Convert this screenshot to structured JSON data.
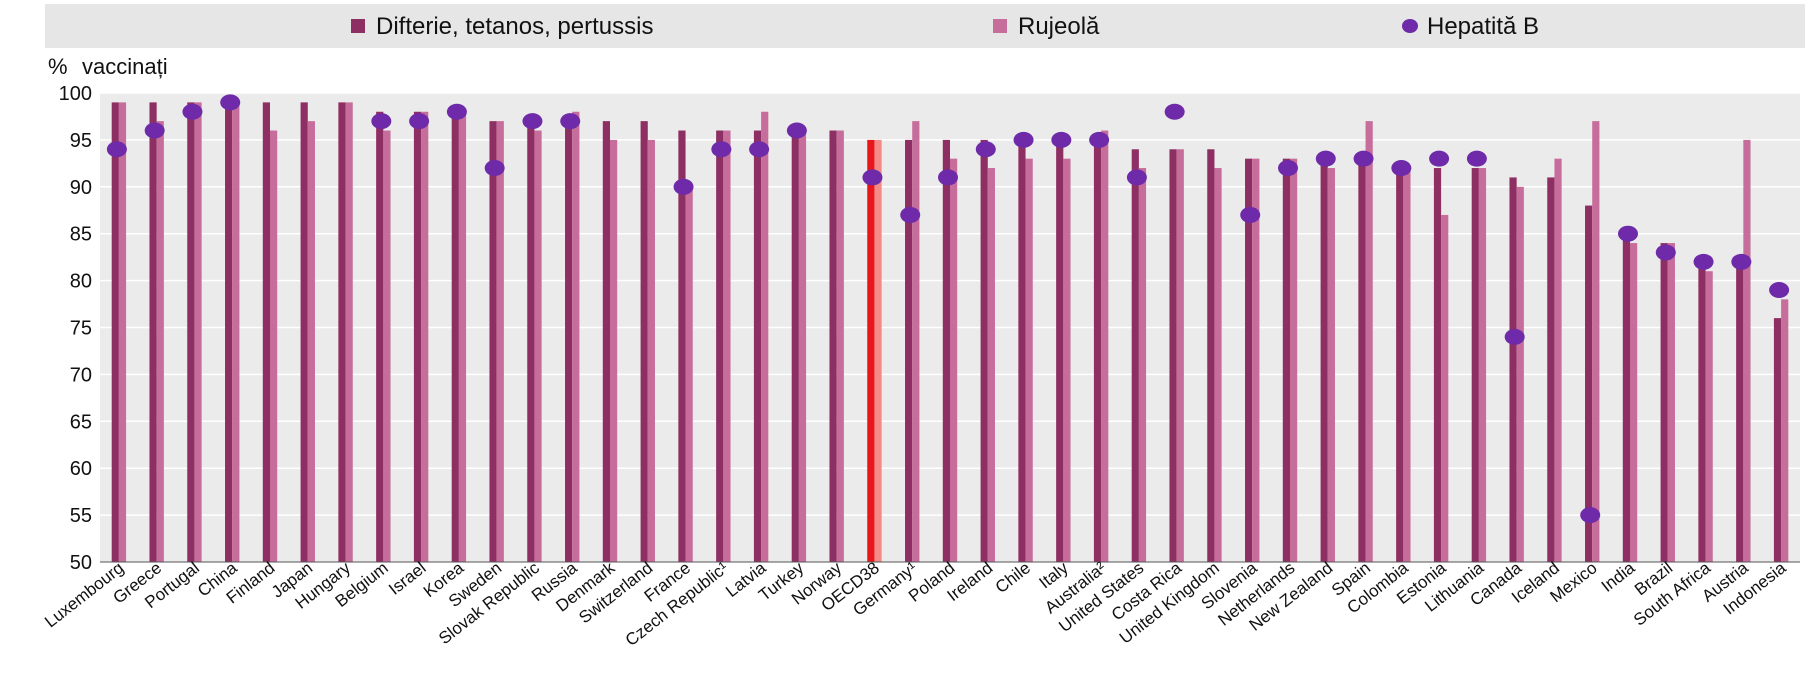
{
  "colors": {
    "series1": "#8e2f63",
    "series2": "#c76d9c",
    "series3": "#6e2aa8",
    "highlight1": "#e8161b",
    "highlight2": "#f48a86",
    "plot_bg": "#ebebeb",
    "legend_bg": "#e6e6e6",
    "grid": "#ffffff"
  },
  "chart_data": {
    "type": "bar",
    "ylabel": "vaccinați",
    "ylabel_unit": "%",
    "ylim": [
      50,
      100
    ],
    "yticks": [
      50,
      55,
      60,
      65,
      70,
      75,
      80,
      85,
      90,
      95,
      100
    ],
    "grid": true,
    "legend_position": "top",
    "highlight_category": "OECD38",
    "categories": [
      "Luxembourg",
      "Greece",
      "Portugal",
      "China",
      "Finland",
      "Japan",
      "Hungary",
      "Belgium",
      "Israel",
      "Korea",
      "Sweden",
      "Slovak Republic",
      "Russia",
      "Denmark",
      "Switzerland",
      "France",
      "Czech Republic¹",
      "Latvia",
      "Turkey",
      "Norway",
      "OECD38",
      "Germany¹",
      "Poland",
      "Ireland",
      "Chile",
      "Italy",
      "Australia²",
      "United States",
      "Costa Rica",
      "United Kingdom",
      "Slovenia",
      "Netherlands",
      "New Zealand",
      "Spain",
      "Colombia",
      "Estonia",
      "Lithuania",
      "Canada",
      "Iceland",
      "Mexico",
      "India",
      "Brazil",
      "South Africa",
      "Austria",
      "Indonesia"
    ],
    "series": [
      {
        "name": "Difterie, tetanos, pertussis",
        "kind": "bar",
        "values": [
          99,
          99,
          99,
          99,
          99,
          99,
          99,
          98,
          98,
          98,
          97,
          97,
          97,
          97,
          97,
          96,
          96,
          96,
          96,
          96,
          95,
          95,
          95,
          95,
          95,
          95,
          95,
          94,
          94,
          94,
          93,
          93,
          93,
          93,
          92,
          92,
          92,
          91,
          91,
          88,
          85,
          84,
          82,
          82,
          76
        ]
      },
      {
        "name": "Rujeolă",
        "kind": "bar",
        "values": [
          99,
          97,
          99,
          99,
          96,
          97,
          99,
          96,
          98,
          98,
          97,
          96,
          98,
          95,
          95,
          90,
          96,
          98,
          96,
          96,
          95,
          97,
          93,
          92,
          93,
          93,
          96,
          92,
          94,
          92,
          93,
          93,
          92,
          97,
          92,
          87,
          92,
          90,
          93,
          97,
          84,
          84,
          81,
          95,
          78
        ]
      },
      {
        "name": "Hepatită B",
        "kind": "dot",
        "values": [
          94,
          96,
          98,
          99,
          null,
          null,
          null,
          97,
          97,
          98,
          92,
          97,
          97,
          null,
          null,
          90,
          94,
          94,
          96,
          null,
          91,
          87,
          91,
          94,
          95,
          95,
          95,
          91,
          98,
          null,
          87,
          92,
          93,
          93,
          92,
          93,
          93,
          74,
          null,
          55,
          85,
          83,
          82,
          82,
          79
        ]
      }
    ]
  }
}
